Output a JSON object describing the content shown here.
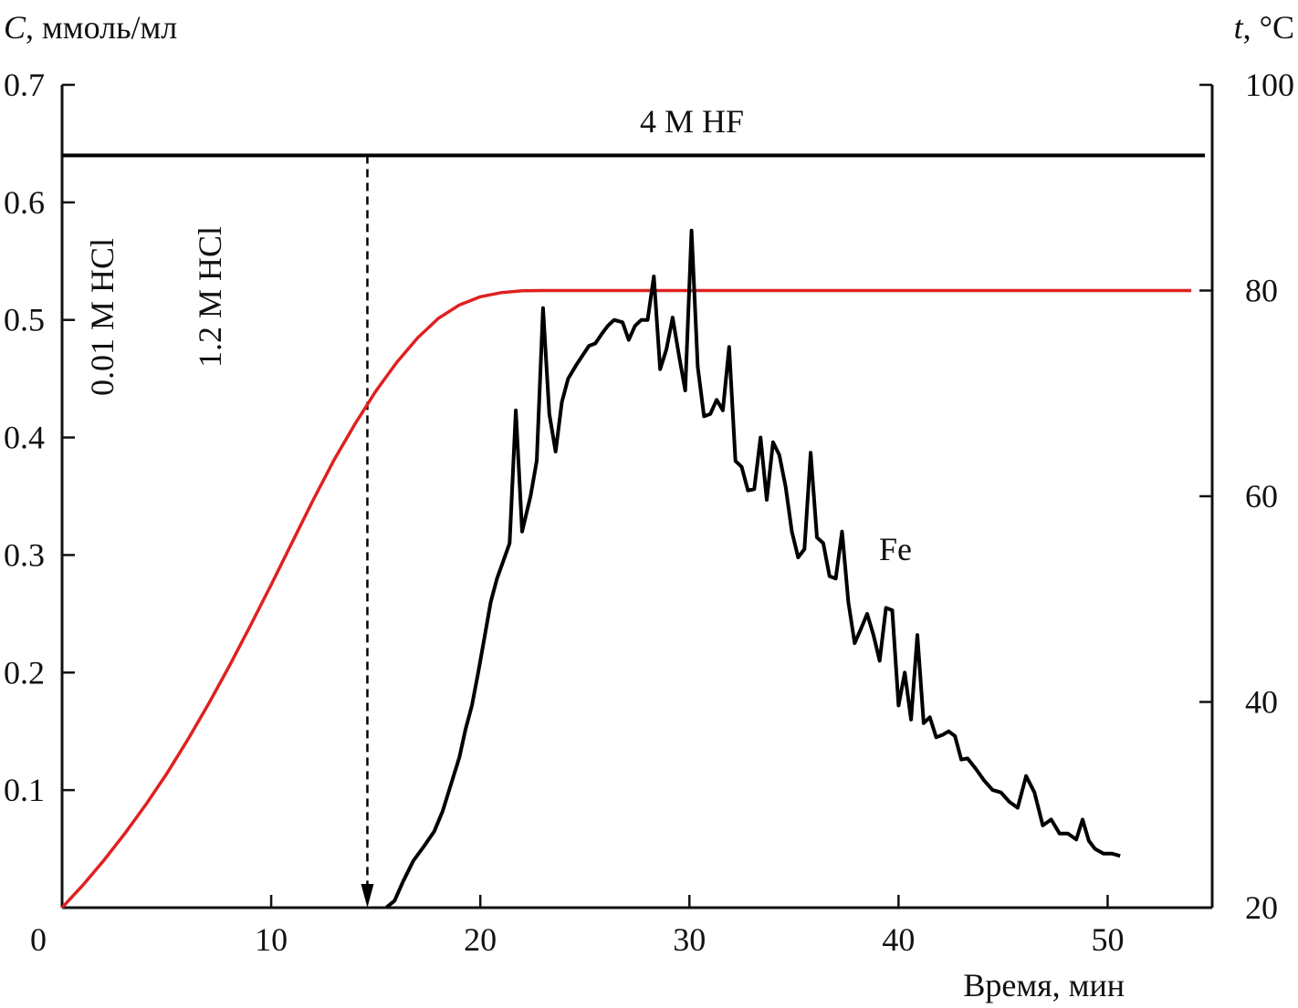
{
  "chart_data": {
    "type": "line",
    "y_axis_left": {
      "label_var": "C",
      "label_rest": ", ммоль/мл",
      "range": [
        0,
        0.7
      ],
      "ticks": [
        0.1,
        0.2,
        0.3,
        0.4,
        0.5,
        0.6,
        0.7
      ],
      "tick_labels": [
        "0.1",
        "0.2",
        "0.3",
        "0.4",
        "0.5",
        "0.6",
        "0.7"
      ]
    },
    "y_axis_right": {
      "label_var": "t",
      "label_rest": ", °C",
      "range": [
        20,
        100
      ],
      "ticks": [
        20,
        40,
        60,
        80,
        100
      ],
      "tick_labels": [
        "20",
        "40",
        "60",
        "80",
        "100"
      ]
    },
    "x_axis": {
      "label": "Время, мин",
      "range": [
        0,
        55
      ],
      "ticks": [
        0,
        10,
        20,
        30,
        40,
        50
      ],
      "tick_labels": [
        "0",
        "10",
        "20",
        "30",
        "40",
        "50"
      ]
    },
    "annotations": {
      "hf_label": "4 M HF",
      "hcl1_label": "0.01 M HCl",
      "hcl2_label": "1.2 M HCl",
      "fe_label": "Fe"
    },
    "colors": {
      "concentration": "#000000",
      "temperature": "#e02020"
    },
    "hf_line": {
      "y": 0.64,
      "x_range": [
        0,
        55
      ]
    },
    "marker_line": {
      "x": 14.6,
      "y_range": [
        0,
        0.64
      ]
    },
    "series": [
      {
        "axis": "left",
        "points": [
          [
            15.5,
            0.0
          ],
          [
            15.9,
            0.006
          ],
          [
            16.3,
            0.022
          ],
          [
            16.8,
            0.04
          ],
          [
            17.3,
            0.052
          ],
          [
            17.8,
            0.065
          ],
          [
            18.2,
            0.082
          ],
          [
            18.6,
            0.105
          ],
          [
            19.0,
            0.128
          ],
          [
            19.3,
            0.152
          ],
          [
            19.6,
            0.172
          ],
          [
            19.9,
            0.2
          ],
          [
            20.2,
            0.23
          ],
          [
            20.5,
            0.26
          ],
          [
            20.8,
            0.28
          ],
          [
            21.1,
            0.295
          ],
          [
            21.4,
            0.31
          ],
          [
            21.7,
            0.423
          ],
          [
            22.0,
            0.32
          ],
          [
            22.4,
            0.35
          ],
          [
            22.7,
            0.38
          ],
          [
            23.0,
            0.51
          ],
          [
            23.3,
            0.42
          ],
          [
            23.6,
            0.388
          ],
          [
            23.9,
            0.43
          ],
          [
            24.2,
            0.45
          ],
          [
            24.6,
            0.462
          ],
          [
            24.9,
            0.47
          ],
          [
            25.2,
            0.478
          ],
          [
            25.5,
            0.48
          ],
          [
            25.8,
            0.488
          ],
          [
            26.1,
            0.495
          ],
          [
            26.4,
            0.5
          ],
          [
            26.8,
            0.498
          ],
          [
            27.1,
            0.483
          ],
          [
            27.4,
            0.495
          ],
          [
            27.7,
            0.5
          ],
          [
            28.0,
            0.5
          ],
          [
            28.3,
            0.537
          ],
          [
            28.6,
            0.458
          ],
          [
            28.9,
            0.475
          ],
          [
            29.2,
            0.502
          ],
          [
            29.5,
            0.47
          ],
          [
            29.8,
            0.44
          ],
          [
            30.1,
            0.576
          ],
          [
            30.4,
            0.46
          ],
          [
            30.7,
            0.418
          ],
          [
            31.0,
            0.42
          ],
          [
            31.3,
            0.432
          ],
          [
            31.6,
            0.423
          ],
          [
            31.9,
            0.477
          ],
          [
            32.2,
            0.38
          ],
          [
            32.5,
            0.375
          ],
          [
            32.8,
            0.355
          ],
          [
            33.1,
            0.356
          ],
          [
            33.4,
            0.4
          ],
          [
            33.7,
            0.347
          ],
          [
            34.0,
            0.396
          ],
          [
            34.3,
            0.385
          ],
          [
            34.6,
            0.358
          ],
          [
            34.9,
            0.32
          ],
          [
            35.2,
            0.298
          ],
          [
            35.5,
            0.305
          ],
          [
            35.8,
            0.387
          ],
          [
            36.1,
            0.315
          ],
          [
            36.4,
            0.31
          ],
          [
            36.7,
            0.282
          ],
          [
            37.0,
            0.28
          ],
          [
            37.3,
            0.32
          ],
          [
            37.6,
            0.26
          ],
          [
            37.9,
            0.225
          ],
          [
            38.2,
            0.237
          ],
          [
            38.5,
            0.25
          ],
          [
            38.8,
            0.232
          ],
          [
            39.1,
            0.21
          ],
          [
            39.4,
            0.255
          ],
          [
            39.7,
            0.253
          ],
          [
            40.0,
            0.172
          ],
          [
            40.3,
            0.2
          ],
          [
            40.6,
            0.16
          ],
          [
            40.9,
            0.232
          ],
          [
            41.2,
            0.157
          ],
          [
            41.5,
            0.162
          ],
          [
            41.8,
            0.145
          ],
          [
            42.1,
            0.147
          ],
          [
            42.4,
            0.15
          ],
          [
            42.7,
            0.146
          ],
          [
            43.0,
            0.126
          ],
          [
            43.3,
            0.127
          ],
          [
            43.7,
            0.118
          ],
          [
            44.1,
            0.108
          ],
          [
            44.5,
            0.1
          ],
          [
            44.9,
            0.098
          ],
          [
            45.3,
            0.09
          ],
          [
            45.7,
            0.085
          ],
          [
            46.1,
            0.112
          ],
          [
            46.5,
            0.098
          ],
          [
            46.9,
            0.07
          ],
          [
            47.3,
            0.075
          ],
          [
            47.7,
            0.063
          ],
          [
            48.1,
            0.063
          ],
          [
            48.5,
            0.058
          ],
          [
            48.8,
            0.075
          ],
          [
            49.1,
            0.057
          ],
          [
            49.4,
            0.05
          ],
          [
            49.8,
            0.046
          ],
          [
            50.2,
            0.046
          ],
          [
            50.6,
            0.044
          ]
        ]
      },
      {
        "axis": "right",
        "points": [
          [
            0,
            20
          ],
          [
            1,
            22.2
          ],
          [
            2,
            24.6
          ],
          [
            3,
            27.2
          ],
          [
            4,
            30.0
          ],
          [
            5,
            33.0
          ],
          [
            6,
            36.3
          ],
          [
            7,
            39.8
          ],
          [
            8,
            43.5
          ],
          [
            9,
            47.4
          ],
          [
            10,
            51.4
          ],
          [
            11,
            55.5
          ],
          [
            12,
            59.6
          ],
          [
            13,
            63.5
          ],
          [
            14,
            67.0
          ],
          [
            15,
            70.2
          ],
          [
            16,
            73.0
          ],
          [
            17,
            75.4
          ],
          [
            18,
            77.3
          ],
          [
            19,
            78.6
          ],
          [
            20,
            79.4
          ],
          [
            21,
            79.8
          ],
          [
            22,
            79.98
          ],
          [
            23,
            80
          ],
          [
            54,
            80
          ]
        ]
      }
    ]
  }
}
